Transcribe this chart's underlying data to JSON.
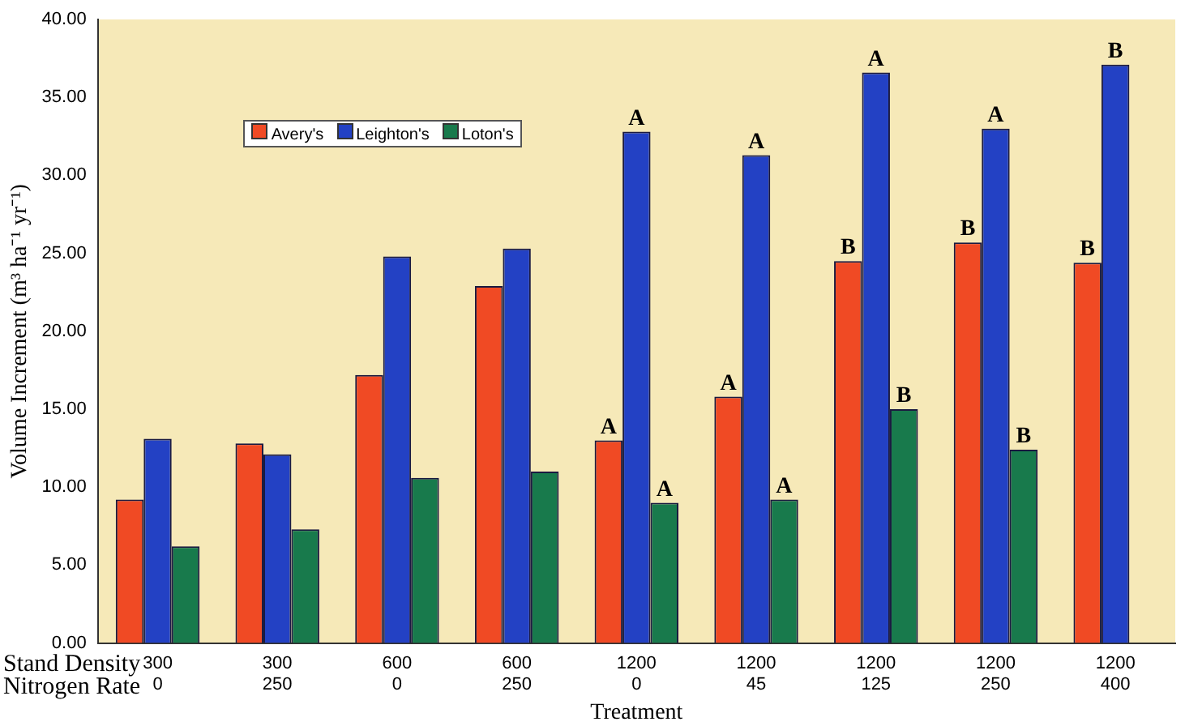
{
  "chart_data": {
    "type": "bar",
    "xlabel": "Treatment",
    "ylabel": "Volume Increment (m³ ha⁻¹ yr⁻¹)",
    "categories": [
      "300\n0",
      "300\n250",
      "600\n0",
      "600\n250",
      "1200\n0",
      "1200\n45",
      "1200\n125",
      "1200\n250",
      "1200\n400"
    ],
    "series": [
      {
        "name": "Avery's",
        "color": "#f04a24",
        "values": [
          9.2,
          12.8,
          17.2,
          22.9,
          13.0,
          15.8,
          24.5,
          25.7,
          24.4
        ],
        "value_labels": [
          null,
          null,
          null,
          null,
          "A",
          "A",
          "B",
          "B",
          "B"
        ]
      },
      {
        "name": "Leighton's",
        "color": "#2341c4",
        "values": [
          13.1,
          12.1,
          24.8,
          25.3,
          32.8,
          31.3,
          36.6,
          33.0,
          37.1
        ],
        "value_labels": [
          null,
          null,
          null,
          null,
          "A",
          "A",
          "A",
          "A",
          "B"
        ]
      },
      {
        "name": "Loton's",
        "color": "#187a4c",
        "values": [
          6.2,
          7.3,
          10.6,
          11.0,
          9.0,
          9.2,
          15.0,
          12.4,
          null
        ],
        "value_labels": [
          null,
          null,
          null,
          null,
          "A",
          "A",
          "B",
          "B",
          null
        ]
      }
    ],
    "ylim": [
      0,
      40
    ],
    "yticks": [
      {
        "value": 0,
        "label": "0.00"
      },
      {
        "value": 5,
        "label": "5.00"
      },
      {
        "value": 10,
        "label": "10.00"
      },
      {
        "value": 15,
        "label": "15.00"
      },
      {
        "value": 20,
        "label": "20.00"
      },
      {
        "value": 25,
        "label": "25.00"
      },
      {
        "value": 30,
        "label": "30.00"
      },
      {
        "value": 35,
        "label": "35.00"
      },
      {
        "value": 40,
        "label": "40.00"
      }
    ],
    "grid": false,
    "legend": "top left",
    "annotations": [
      "Stand Density",
      "Nitrogen Rate"
    ]
  }
}
